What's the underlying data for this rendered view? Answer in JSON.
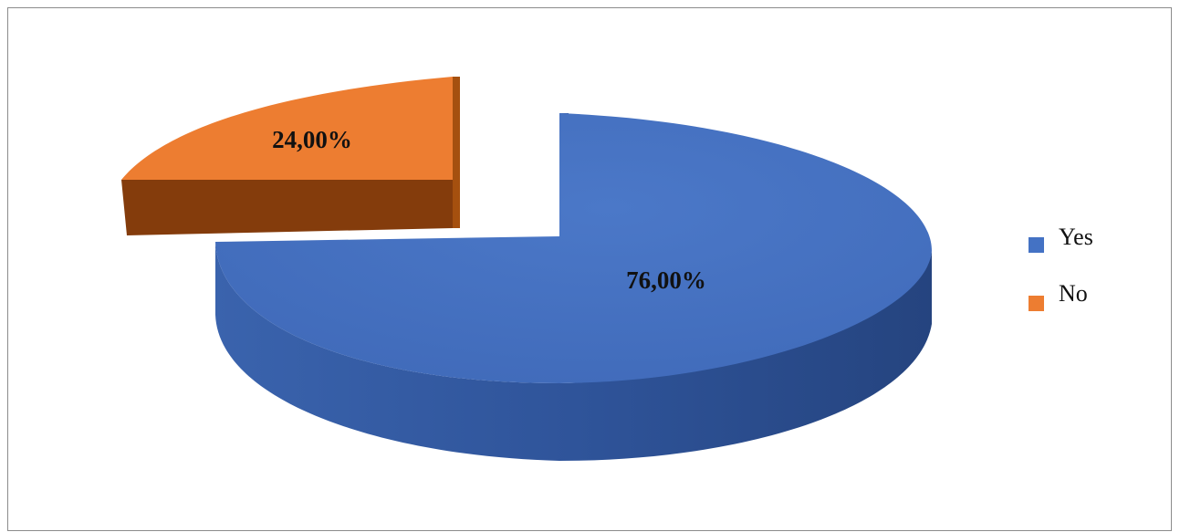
{
  "chart_data": {
    "type": "pie",
    "style": "3d-exploded",
    "categories": [
      "Yes",
      "No"
    ],
    "values": [
      76.0,
      24.0
    ],
    "data_labels": [
      "76,00%",
      "24,00%"
    ],
    "colors": {
      "Yes": "#4472C4",
      "No": "#ED7D31"
    },
    "legend": {
      "position": "right",
      "items": [
        "Yes",
        "No"
      ]
    }
  }
}
